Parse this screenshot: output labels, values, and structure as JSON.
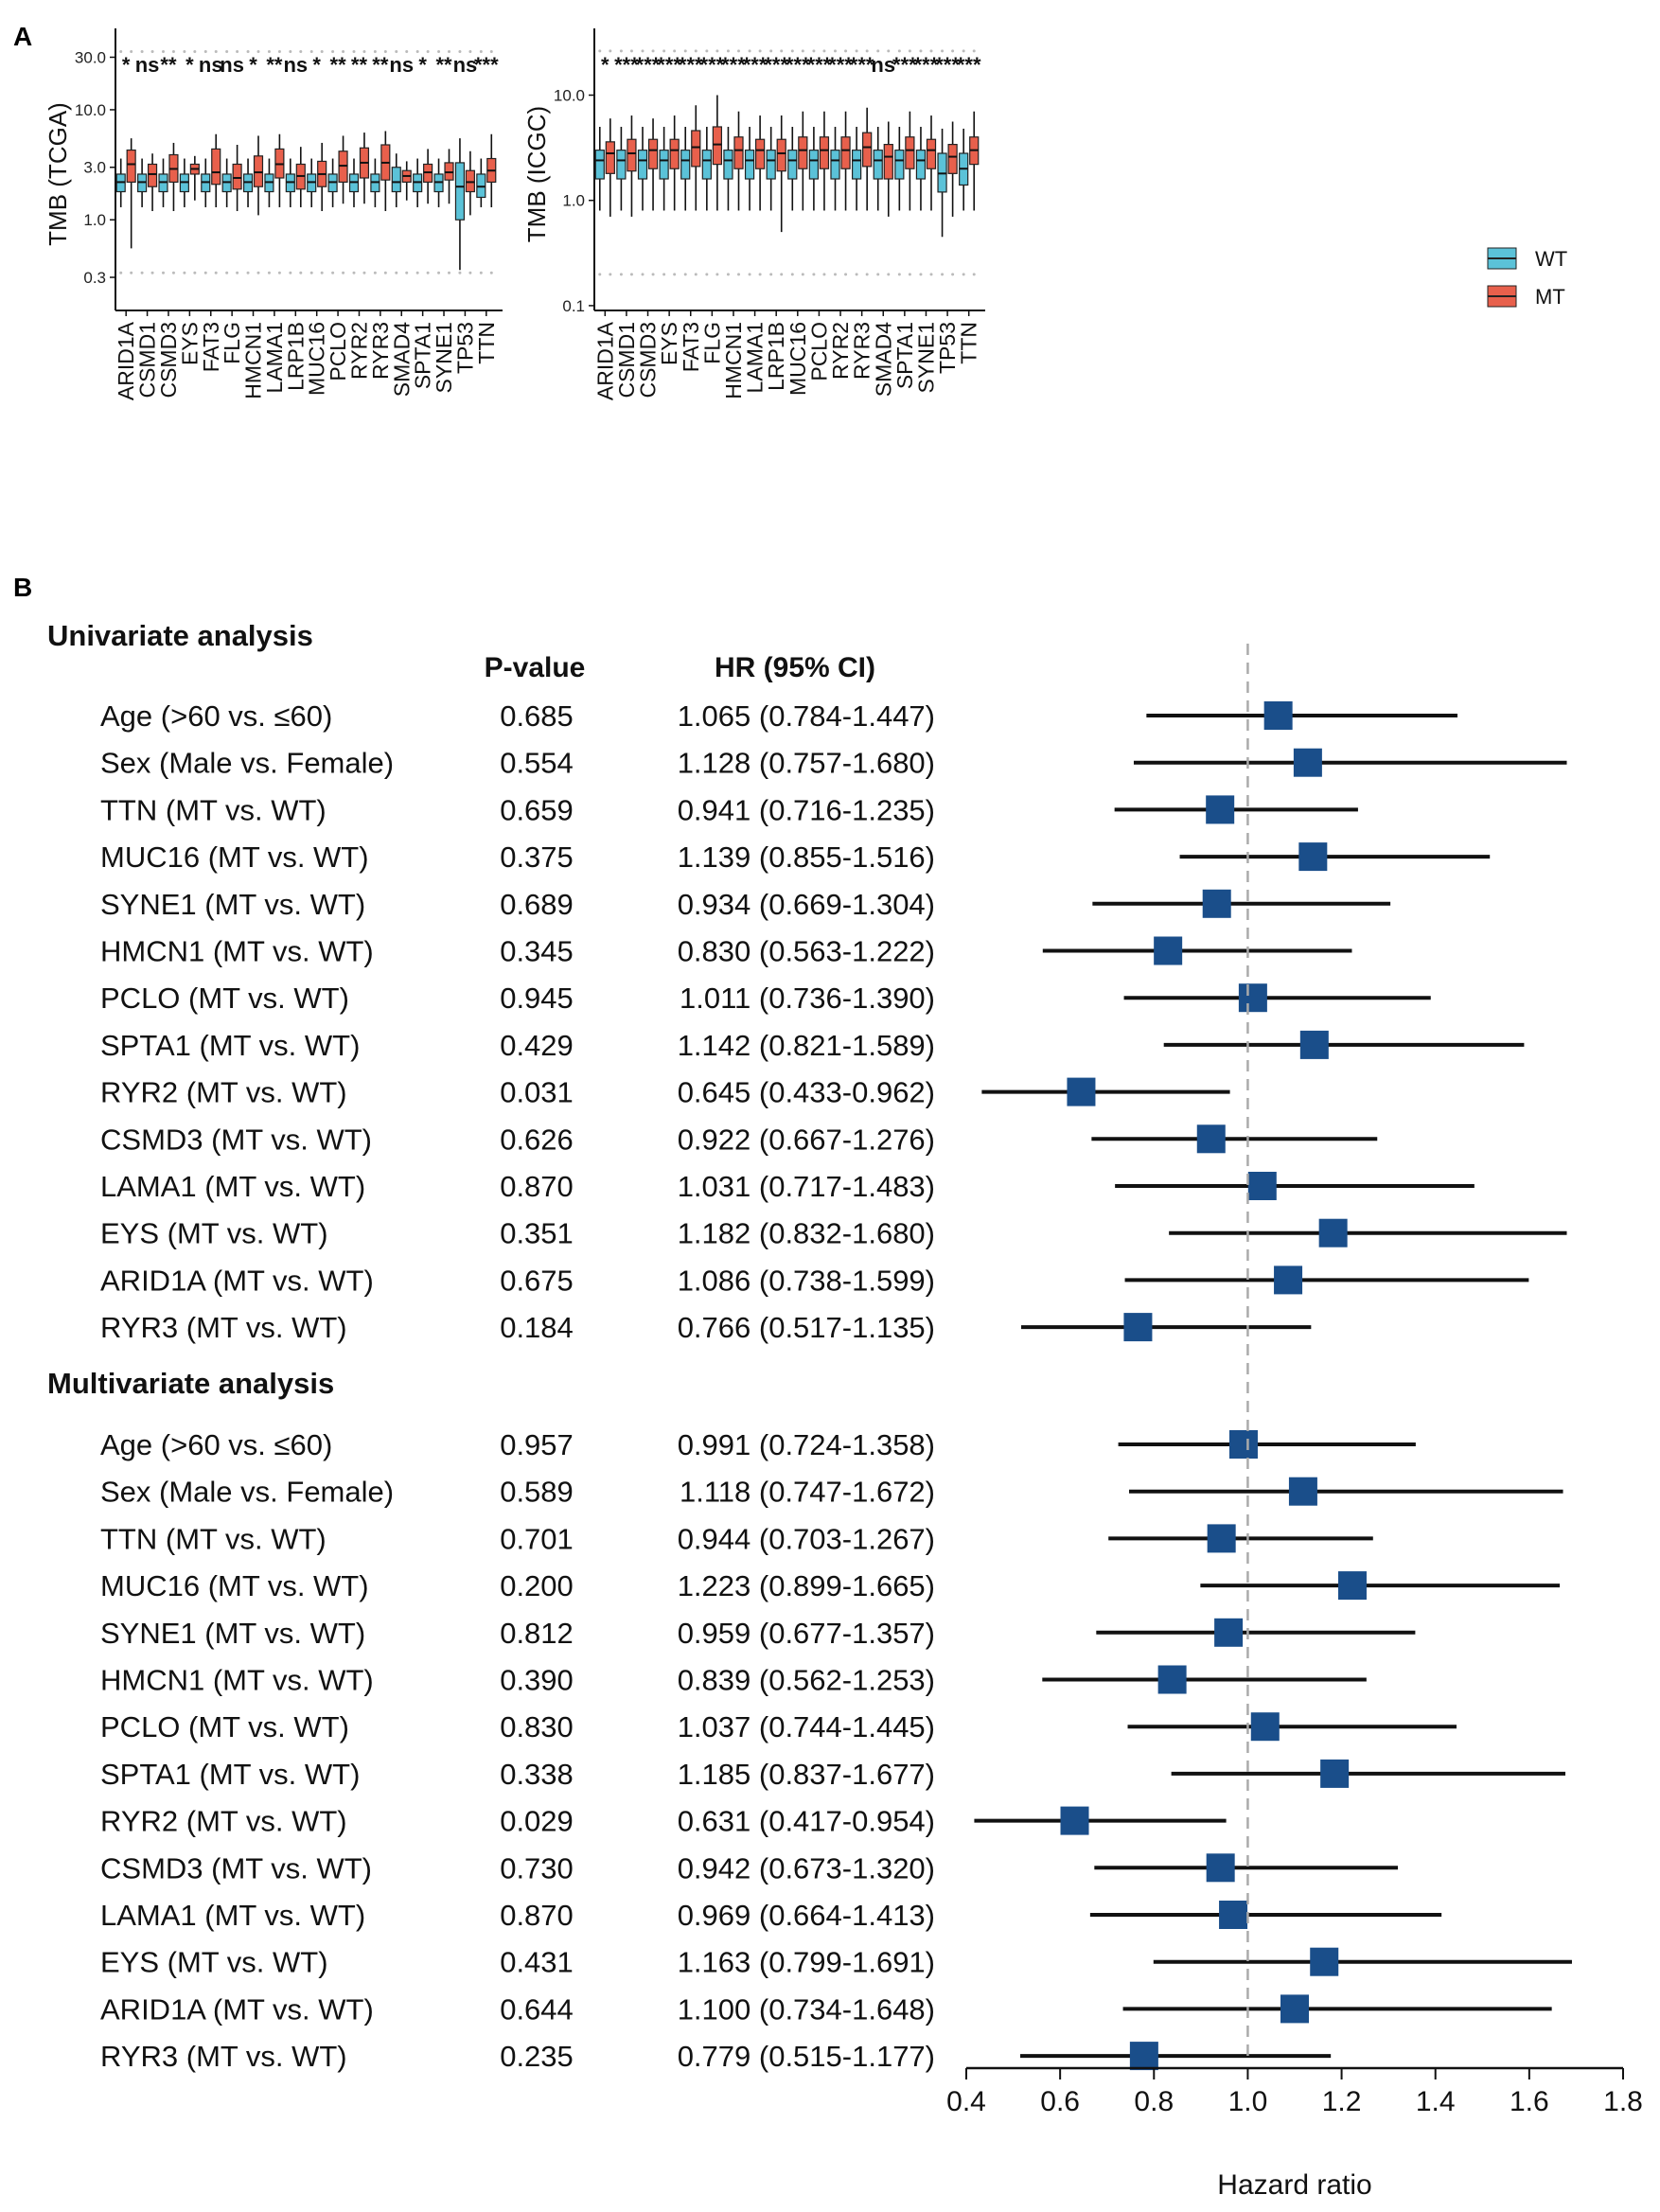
{
  "panel_labels": {
    "a": "A",
    "b": "B"
  },
  "colors": {
    "wt": "#5bc2d8",
    "mt": "#e8604c",
    "hr_square": "#1a4e8a",
    "ref_line": "#aaaaaa"
  },
  "chart_data": [
    {
      "type": "boxplot",
      "id": "tcga",
      "ylabel": "TMB (TCGA)",
      "yscale": "log10",
      "ylim": [
        0.15,
        45
      ],
      "yticks": [
        0.3,
        1.0,
        3.0,
        10.0,
        30.0
      ],
      "ytick_labels": [
        "0.3",
        "1.0",
        "3.0",
        "10.0",
        "30.0"
      ],
      "categories": [
        "ARID1A",
        "CSMD1",
        "CSMD3",
        "EYS",
        "FAT3",
        "FLG",
        "HMCN1",
        "LAMA1",
        "LRP1B",
        "MUC16",
        "PCLO",
        "RYR2",
        "RYR3",
        "SMAD4",
        "SPTA1",
        "SYNE1",
        "TP53",
        "TTN"
      ],
      "significance": [
        "*",
        "ns",
        "**",
        "*",
        "ns",
        "ns",
        "*",
        "**",
        "ns",
        "*",
        "**",
        "**",
        "**",
        "ns",
        "*",
        "**",
        "ns",
        "***"
      ],
      "series": [
        {
          "name": "WT",
          "boxes": [
            [
              1.3,
              1.8,
              2.2,
              2.6,
              3.6
            ],
            [
              1.3,
              1.8,
              2.2,
              2.6,
              3.6
            ],
            [
              1.3,
              1.8,
              2.2,
              2.6,
              3.6
            ],
            [
              1.3,
              1.8,
              2.2,
              2.6,
              3.6
            ],
            [
              1.3,
              1.8,
              2.2,
              2.6,
              3.6
            ],
            [
              1.3,
              1.8,
              2.2,
              2.6,
              3.6
            ],
            [
              1.3,
              1.8,
              2.2,
              2.6,
              3.6
            ],
            [
              1.3,
              1.8,
              2.2,
              2.6,
              3.6
            ],
            [
              1.3,
              1.8,
              2.2,
              2.6,
              3.6
            ],
            [
              1.3,
              1.8,
              2.2,
              2.6,
              3.6
            ],
            [
              1.3,
              1.8,
              2.2,
              2.6,
              3.6
            ],
            [
              1.3,
              1.8,
              2.2,
              2.6,
              3.6
            ],
            [
              1.3,
              1.8,
              2.2,
              2.6,
              3.6
            ],
            [
              1.3,
              1.8,
              2.2,
              3.0,
              4.0
            ],
            [
              1.3,
              1.8,
              2.2,
              2.6,
              3.6
            ],
            [
              1.3,
              1.8,
              2.2,
              2.6,
              3.6
            ],
            [
              0.35,
              1.0,
              2.0,
              3.3,
              5.5
            ],
            [
              1.3,
              1.6,
              2.0,
              2.6,
              3.6
            ]
          ]
        },
        {
          "name": "MT",
          "boxes": [
            [
              0.55,
              2.2,
              3.2,
              4.3,
              5.5
            ],
            [
              1.2,
              2.0,
              2.6,
              3.2,
              4.0
            ],
            [
              1.2,
              2.2,
              2.9,
              3.9,
              5.0
            ],
            [
              1.5,
              2.6,
              2.9,
              3.2,
              3.8
            ],
            [
              1.3,
              2.1,
              2.7,
              4.4,
              6.0
            ],
            [
              1.2,
              1.9,
              2.4,
              3.2,
              4.8
            ],
            [
              1.1,
              2.0,
              2.7,
              3.8,
              5.8
            ],
            [
              1.3,
              2.4,
              3.2,
              4.4,
              6.0
            ],
            [
              1.3,
              1.9,
              2.5,
              3.2,
              4.6
            ],
            [
              1.2,
              2.0,
              2.6,
              3.4,
              5.0
            ],
            [
              1.4,
              2.2,
              3.1,
              4.2,
              5.8
            ],
            [
              1.4,
              2.4,
              3.3,
              4.5,
              6.2
            ],
            [
              1.2,
              2.3,
              3.3,
              4.8,
              6.4
            ],
            [
              1.5,
              2.2,
              2.5,
              2.8,
              3.4
            ],
            [
              1.4,
              2.2,
              2.7,
              3.2,
              4.4
            ],
            [
              1.4,
              2.3,
              2.7,
              3.3,
              4.4
            ],
            [
              1.1,
              1.8,
              2.2,
              2.8,
              4.2
            ],
            [
              1.3,
              2.2,
              2.8,
              3.6,
              6.0
            ]
          ]
        }
      ]
    },
    {
      "type": "boxplot",
      "id": "icgc",
      "ylabel": "TMB (ICGC)",
      "yscale": "log10",
      "ylim": [
        0.09,
        35
      ],
      "yticks": [
        0.1,
        1.0,
        10.0
      ],
      "ytick_labels": [
        "0.1",
        "1.0",
        "10.0"
      ],
      "categories": [
        "ARID1A",
        "CSMD1",
        "CSMD3",
        "EYS",
        "FAT3",
        "FLG",
        "HMCN1",
        "LAMA1",
        "LRP1B",
        "MUC16",
        "PCLO",
        "RYR2",
        "RYR3",
        "SMAD4",
        "SPTA1",
        "SYNE1",
        "TP53",
        "TTN"
      ],
      "significance": [
        "*",
        "***",
        "***",
        "***",
        "***",
        "***",
        "***",
        "***",
        "***",
        "***",
        "***",
        "***",
        "***",
        "ns",
        "***",
        "***",
        "***",
        "***"
      ],
      "series": [
        {
          "name": "WT",
          "boxes": [
            [
              0.8,
              1.6,
              2.4,
              3.0,
              5.0
            ],
            [
              0.8,
              1.6,
              2.4,
              3.0,
              5.0
            ],
            [
              0.8,
              1.6,
              2.4,
              3.0,
              5.0
            ],
            [
              0.8,
              1.6,
              2.4,
              3.0,
              5.0
            ],
            [
              0.8,
              1.6,
              2.4,
              3.0,
              5.0
            ],
            [
              0.8,
              1.6,
              2.4,
              3.0,
              5.0
            ],
            [
              0.8,
              1.6,
              2.4,
              3.0,
              5.0
            ],
            [
              0.8,
              1.6,
              2.4,
              3.0,
              5.0
            ],
            [
              0.8,
              1.6,
              2.4,
              3.0,
              5.0
            ],
            [
              0.8,
              1.6,
              2.4,
              3.0,
              5.0
            ],
            [
              0.8,
              1.6,
              2.4,
              3.0,
              5.0
            ],
            [
              0.8,
              1.6,
              2.4,
              3.0,
              5.0
            ],
            [
              0.8,
              1.6,
              2.4,
              3.0,
              5.0
            ],
            [
              0.8,
              1.6,
              2.4,
              3.0,
              5.0
            ],
            [
              0.8,
              1.6,
              2.4,
              3.0,
              5.0
            ],
            [
              0.8,
              1.6,
              2.4,
              3.0,
              5.0
            ],
            [
              0.45,
              1.2,
              1.8,
              2.8,
              4.8
            ],
            [
              0.8,
              1.4,
              2.0,
              2.8,
              4.8
            ]
          ]
        },
        {
          "name": "MT",
          "boxes": [
            [
              0.7,
              1.8,
              2.8,
              3.6,
              6.0
            ],
            [
              0.7,
              1.9,
              2.8,
              3.8,
              6.4
            ],
            [
              0.8,
              2.0,
              3.0,
              3.8,
              6.0
            ],
            [
              0.8,
              2.0,
              3.0,
              3.8,
              6.4
            ],
            [
              0.8,
              2.1,
              3.2,
              4.6,
              8.0
            ],
            [
              0.8,
              2.2,
              3.4,
              5.0,
              10.0
            ],
            [
              0.8,
              2.0,
              3.0,
              4.0,
              7.0
            ],
            [
              0.8,
              2.0,
              3.0,
              3.8,
              6.4
            ],
            [
              0.5,
              1.9,
              2.8,
              3.8,
              6.4
            ],
            [
              0.8,
              2.0,
              3.0,
              4.0,
              7.0
            ],
            [
              0.8,
              2.0,
              3.0,
              4.0,
              7.0
            ],
            [
              0.8,
              2.0,
              3.0,
              4.0,
              7.0
            ],
            [
              0.8,
              2.1,
              3.2,
              4.4,
              7.6
            ],
            [
              0.7,
              1.6,
              2.6,
              3.4,
              5.6
            ],
            [
              0.8,
              2.0,
              3.0,
              4.0,
              7.0
            ],
            [
              0.8,
              2.0,
              3.0,
              3.8,
              6.4
            ],
            [
              0.7,
              1.8,
              2.6,
              3.4,
              5.6
            ],
            [
              0.8,
              2.2,
              3.0,
              4.0,
              7.0
            ]
          ]
        }
      ]
    },
    {
      "type": "forest",
      "id": "cox",
      "xlabel": "Hazard ratio",
      "xlim": [
        0.4,
        1.8
      ],
      "xticks": [
        0.4,
        0.6,
        0.8,
        1.0,
        1.2,
        1.4,
        1.6,
        1.8
      ],
      "xtick_labels": [
        "0.4",
        "0.6",
        "0.8",
        "1.0",
        "1.2",
        "1.4",
        "1.6",
        "1.8"
      ],
      "reference": 1.0,
      "col_pvalue": "P-value",
      "col_hr": "HR (95% CI)",
      "sections": [
        {
          "title": "Univariate analysis",
          "rows": [
            {
              "label": "Age (>60 vs. ≤60)",
              "p": "0.685",
              "hr_text": "1.065 (0.784-1.447)",
              "hr": 1.065,
              "lo": 0.784,
              "hi": 1.447
            },
            {
              "label": "Sex (Male vs. Female)",
              "p": "0.554",
              "hr_text": "1.128 (0.757-1.680)",
              "hr": 1.128,
              "lo": 0.757,
              "hi": 1.68
            },
            {
              "label": "TTN (MT vs. WT)",
              "p": "0.659",
              "hr_text": "0.941 (0.716-1.235)",
              "hr": 0.941,
              "lo": 0.716,
              "hi": 1.235
            },
            {
              "label": "MUC16 (MT vs. WT)",
              "p": "0.375",
              "hr_text": "1.139 (0.855-1.516)",
              "hr": 1.139,
              "lo": 0.855,
              "hi": 1.516
            },
            {
              "label": "SYNE1 (MT vs. WT)",
              "p": "0.689",
              "hr_text": "0.934 (0.669-1.304)",
              "hr": 0.934,
              "lo": 0.669,
              "hi": 1.304
            },
            {
              "label": "HMCN1 (MT vs. WT)",
              "p": "0.345",
              "hr_text": "0.830 (0.563-1.222)",
              "hr": 0.83,
              "lo": 0.563,
              "hi": 1.222
            },
            {
              "label": "PCLO (MT vs. WT)",
              "p": "0.945",
              "hr_text": "1.011 (0.736-1.390)",
              "hr": 1.011,
              "lo": 0.736,
              "hi": 1.39
            },
            {
              "label": "SPTA1 (MT vs. WT)",
              "p": "0.429",
              "hr_text": "1.142 (0.821-1.589)",
              "hr": 1.142,
              "lo": 0.821,
              "hi": 1.589
            },
            {
              "label": "RYR2 (MT vs. WT)",
              "p": "0.031",
              "hr_text": "0.645 (0.433-0.962)",
              "hr": 0.645,
              "lo": 0.433,
              "hi": 0.962
            },
            {
              "label": "CSMD3 (MT vs. WT)",
              "p": "0.626",
              "hr_text": "0.922 (0.667-1.276)",
              "hr": 0.922,
              "lo": 0.667,
              "hi": 1.276
            },
            {
              "label": "LAMA1 (MT vs. WT)",
              "p": "0.870",
              "hr_text": "1.031 (0.717-1.483)",
              "hr": 1.031,
              "lo": 0.717,
              "hi": 1.483
            },
            {
              "label": "EYS (MT vs. WT)",
              "p": "0.351",
              "hr_text": "1.182 (0.832-1.680)",
              "hr": 1.182,
              "lo": 0.832,
              "hi": 1.68
            },
            {
              "label": "ARID1A (MT vs. WT)",
              "p": "0.675",
              "hr_text": "1.086 (0.738-1.599)",
              "hr": 1.086,
              "lo": 0.738,
              "hi": 1.599
            },
            {
              "label": "RYR3 (MT vs. WT)",
              "p": "0.184",
              "hr_text": "0.766 (0.517-1.135)",
              "hr": 0.766,
              "lo": 0.517,
              "hi": 1.135
            }
          ]
        },
        {
          "title": "Multivariate analysis",
          "rows": [
            {
              "label": "Age (>60 vs. ≤60)",
              "p": "0.957",
              "hr_text": "0.991 (0.724-1.358)",
              "hr": 0.991,
              "lo": 0.724,
              "hi": 1.358
            },
            {
              "label": "Sex (Male vs. Female)",
              "p": "0.589",
              "hr_text": "1.118 (0.747-1.672)",
              "hr": 1.118,
              "lo": 0.747,
              "hi": 1.672
            },
            {
              "label": "TTN (MT vs. WT)",
              "p": "0.701",
              "hr_text": "0.944 (0.703-1.267)",
              "hr": 0.944,
              "lo": 0.703,
              "hi": 1.267
            },
            {
              "label": "MUC16 (MT vs. WT)",
              "p": "0.200",
              "hr_text": "1.223 (0.899-1.665)",
              "hr": 1.223,
              "lo": 0.899,
              "hi": 1.665
            },
            {
              "label": "SYNE1 (MT vs. WT)",
              "p": "0.812",
              "hr_text": "0.959 (0.677-1.357)",
              "hr": 0.959,
              "lo": 0.677,
              "hi": 1.357
            },
            {
              "label": "HMCN1 (MT vs. WT)",
              "p": "0.390",
              "hr_text": "0.839 (0.562-1.253)",
              "hr": 0.839,
              "lo": 0.562,
              "hi": 1.253
            },
            {
              "label": "PCLO (MT vs. WT)",
              "p": "0.830",
              "hr_text": "1.037 (0.744-1.445)",
              "hr": 1.037,
              "lo": 0.744,
              "hi": 1.445
            },
            {
              "label": "SPTA1 (MT vs. WT)",
              "p": "0.338",
              "hr_text": "1.185 (0.837-1.677)",
              "hr": 1.185,
              "lo": 0.837,
              "hi": 1.677
            },
            {
              "label": "RYR2 (MT vs. WT)",
              "p": "0.029",
              "hr_text": "0.631 (0.417-0.954)",
              "hr": 0.631,
              "lo": 0.417,
              "hi": 0.954
            },
            {
              "label": "CSMD3 (MT vs. WT)",
              "p": "0.730",
              "hr_text": "0.942 (0.673-1.320)",
              "hr": 0.942,
              "lo": 0.673,
              "hi": 1.32
            },
            {
              "label": "LAMA1 (MT vs. WT)",
              "p": "0.870",
              "hr_text": "0.969 (0.664-1.413)",
              "hr": 0.969,
              "lo": 0.664,
              "hi": 1.413
            },
            {
              "label": "EYS (MT vs. WT)",
              "p": "0.431",
              "hr_text": "1.163 (0.799-1.691)",
              "hr": 1.163,
              "lo": 0.799,
              "hi": 1.691
            },
            {
              "label": "ARID1A (MT vs. WT)",
              "p": "0.644",
              "hr_text": "1.100 (0.734-1.648)",
              "hr": 1.1,
              "lo": 0.734,
              "hi": 1.648
            },
            {
              "label": "RYR3 (MT vs. WT)",
              "p": "0.235",
              "hr_text": "0.779 (0.515-1.177)",
              "hr": 0.779,
              "lo": 0.515,
              "hi": 1.177
            }
          ]
        }
      ]
    }
  ],
  "legend": [
    {
      "name": "WT"
    },
    {
      "name": "MT"
    }
  ]
}
